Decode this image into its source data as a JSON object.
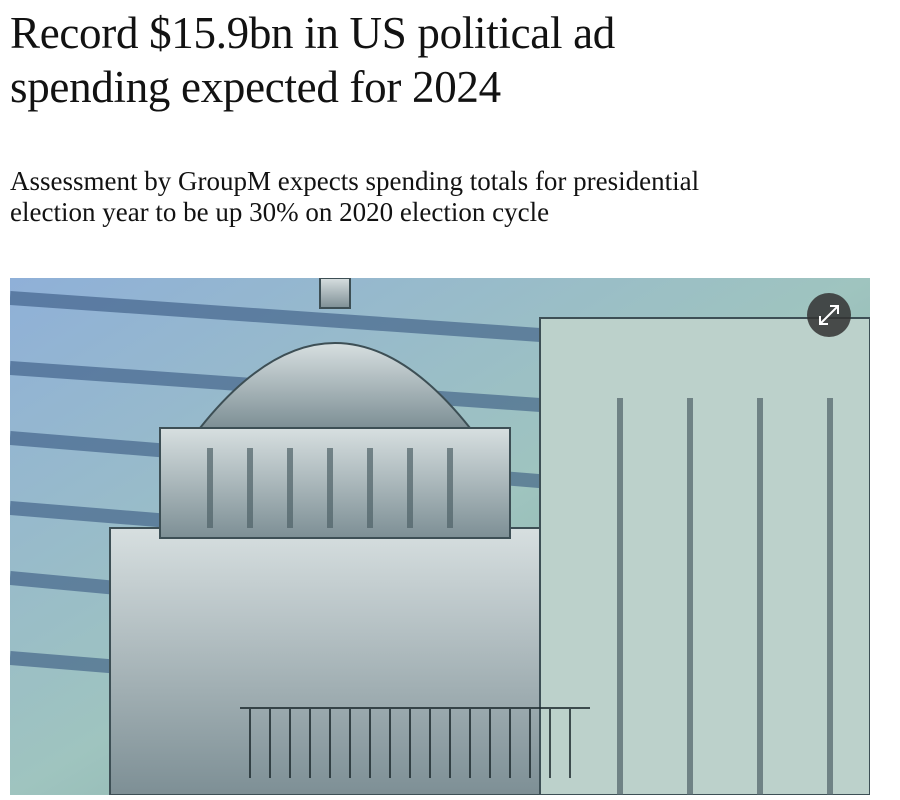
{
  "article": {
    "headline": "Record $15.9bn in US political ad spending expected for 2024",
    "standfirst": "Assessment by GroupM expects spending totals for presidential election year to be up 30% on 2020 election cycle"
  }
}
